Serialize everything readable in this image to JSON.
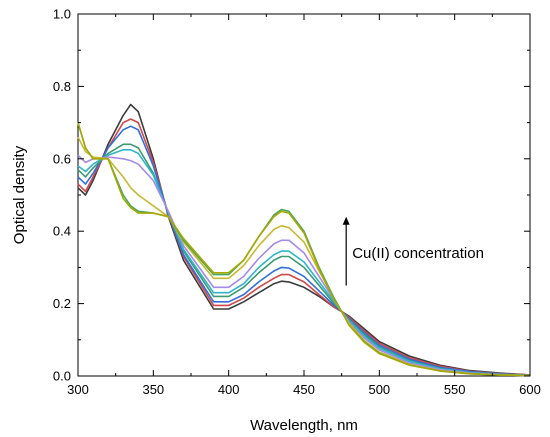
{
  "chart_data": {
    "type": "line",
    "xlabel": "Wavelength, nm",
    "ylabel": "Optical density",
    "xlim": [
      300,
      600
    ],
    "ylim": [
      0.0,
      1.0
    ],
    "x_ticks": [
      "300",
      "350",
      "400",
      "450",
      "500",
      "550",
      "600"
    ],
    "y_ticks": [
      "0.0",
      "0.2",
      "0.4",
      "0.6",
      "0.8",
      "1.0"
    ],
    "grid": false,
    "annotation": {
      "text": "Cu(II) concentration",
      "arrow": "up",
      "arrow_x": 478,
      "arrow_y_from": 0.25,
      "arrow_y_to": 0.44,
      "text_x": 482,
      "text_y": 0.34
    },
    "series": [
      {
        "color": "#3c3c3c",
        "x": [
          300,
          305,
          310,
          320,
          330,
          335,
          340,
          350,
          360,
          370,
          390,
          400,
          410,
          420,
          430,
          435,
          440,
          450,
          460,
          470,
          475,
          480,
          490,
          500,
          520,
          540,
          560,
          580,
          600
        ],
        "y": [
          0.52,
          0.5,
          0.54,
          0.64,
          0.72,
          0.75,
          0.73,
          0.6,
          0.44,
          0.32,
          0.185,
          0.185,
          0.205,
          0.23,
          0.255,
          0.262,
          0.26,
          0.245,
          0.22,
          0.19,
          0.178,
          0.165,
          0.13,
          0.095,
          0.055,
          0.03,
          0.015,
          0.008,
          0.003
        ]
      },
      {
        "color": "#d04848",
        "x": [
          300,
          305,
          310,
          320,
          330,
          335,
          340,
          350,
          360,
          370,
          390,
          400,
          410,
          420,
          430,
          435,
          440,
          450,
          460,
          470,
          475,
          480,
          490,
          500,
          520,
          540,
          560,
          580,
          600
        ],
        "y": [
          0.53,
          0.51,
          0.55,
          0.63,
          0.7,
          0.71,
          0.7,
          0.59,
          0.445,
          0.33,
          0.195,
          0.195,
          0.215,
          0.245,
          0.27,
          0.28,
          0.28,
          0.26,
          0.225,
          0.19,
          0.178,
          0.162,
          0.125,
          0.09,
          0.05,
          0.027,
          0.013,
          0.007,
          0.003
        ]
      },
      {
        "color": "#2f6fe0",
        "x": [
          300,
          305,
          310,
          320,
          330,
          335,
          340,
          350,
          360,
          370,
          390,
          400,
          410,
          420,
          430,
          435,
          440,
          450,
          460,
          470,
          475,
          480,
          490,
          500,
          520,
          540,
          560,
          580,
          600
        ],
        "y": [
          0.55,
          0.53,
          0.56,
          0.63,
          0.68,
          0.69,
          0.68,
          0.58,
          0.447,
          0.335,
          0.205,
          0.205,
          0.225,
          0.26,
          0.29,
          0.3,
          0.298,
          0.275,
          0.235,
          0.195,
          0.178,
          0.158,
          0.12,
          0.085,
          0.046,
          0.024,
          0.012,
          0.006,
          0.002
        ]
      },
      {
        "color": "#3a9a72",
        "x": [
          300,
          305,
          310,
          320,
          330,
          335,
          340,
          350,
          360,
          370,
          390,
          400,
          410,
          420,
          430,
          435,
          440,
          450,
          460,
          470,
          475,
          480,
          490,
          500,
          520,
          540,
          560,
          580,
          600
        ],
        "y": [
          0.57,
          0.55,
          0.575,
          0.615,
          0.64,
          0.64,
          0.63,
          0.56,
          0.45,
          0.345,
          0.22,
          0.22,
          0.245,
          0.285,
          0.32,
          0.33,
          0.33,
          0.3,
          0.25,
          0.2,
          0.178,
          0.155,
          0.115,
          0.08,
          0.042,
          0.021,
          0.01,
          0.005,
          0.002
        ]
      },
      {
        "color": "#2eb6c8",
        "x": [
          300,
          305,
          310,
          320,
          330,
          335,
          340,
          350,
          360,
          370,
          390,
          400,
          410,
          420,
          430,
          435,
          440,
          450,
          460,
          470,
          475,
          480,
          490,
          500,
          520,
          540,
          560,
          580,
          600
        ],
        "y": [
          0.58,
          0.565,
          0.585,
          0.61,
          0.625,
          0.625,
          0.615,
          0.555,
          0.452,
          0.35,
          0.23,
          0.23,
          0.255,
          0.3,
          0.335,
          0.345,
          0.345,
          0.315,
          0.26,
          0.205,
          0.178,
          0.152,
          0.11,
          0.077,
          0.04,
          0.02,
          0.009,
          0.004,
          0.002
        ]
      },
      {
        "color": "#a58ae8",
        "x": [
          300,
          305,
          310,
          320,
          330,
          335,
          340,
          350,
          360,
          370,
          390,
          400,
          410,
          420,
          430,
          435,
          440,
          450,
          460,
          470,
          475,
          480,
          490,
          500,
          520,
          540,
          560,
          580,
          600
        ],
        "y": [
          0.61,
          0.59,
          0.6,
          0.605,
          0.6,
          0.595,
          0.585,
          0.54,
          0.455,
          0.36,
          0.245,
          0.245,
          0.275,
          0.325,
          0.365,
          0.375,
          0.375,
          0.34,
          0.275,
          0.21,
          0.178,
          0.148,
          0.105,
          0.072,
          0.036,
          0.018,
          0.008,
          0.004,
          0.001
        ]
      },
      {
        "color": "#c8b830",
        "x": [
          300,
          305,
          310,
          320,
          330,
          335,
          340,
          350,
          360,
          370,
          390,
          400,
          410,
          420,
          430,
          435,
          440,
          450,
          460,
          470,
          475,
          480,
          490,
          500,
          520,
          540,
          560,
          580,
          600
        ],
        "y": [
          0.66,
          0.62,
          0.605,
          0.6,
          0.55,
          0.52,
          0.5,
          0.47,
          0.44,
          0.37,
          0.27,
          0.27,
          0.305,
          0.36,
          0.405,
          0.415,
          0.41,
          0.37,
          0.29,
          0.215,
          0.178,
          0.145,
          0.098,
          0.066,
          0.032,
          0.015,
          0.007,
          0.003,
          0.001
        ]
      },
      {
        "color": "#48a860",
        "x": [
          300,
          305,
          310,
          320,
          330,
          335,
          340,
          350,
          360,
          370,
          390,
          400,
          410,
          420,
          430,
          435,
          440,
          450,
          460,
          470,
          475,
          480,
          490,
          500,
          520,
          540,
          560,
          580,
          600
        ],
        "y": [
          0.7,
          0.63,
          0.6,
          0.6,
          0.5,
          0.47,
          0.455,
          0.45,
          0.44,
          0.375,
          0.28,
          0.28,
          0.32,
          0.385,
          0.445,
          0.46,
          0.455,
          0.4,
          0.3,
          0.215,
          0.178,
          0.14,
          0.095,
          0.063,
          0.03,
          0.014,
          0.006,
          0.003,
          0.001
        ]
      },
      {
        "color": "#a8a800",
        "x": [
          300,
          305,
          310,
          320,
          330,
          335,
          340,
          350,
          360,
          370,
          390,
          400,
          410,
          420,
          430,
          435,
          440,
          450,
          460,
          470,
          475,
          480,
          490,
          500,
          520,
          540,
          560,
          580,
          600
        ],
        "y": [
          0.7,
          0.63,
          0.6,
          0.6,
          0.49,
          0.465,
          0.45,
          0.45,
          0.44,
          0.38,
          0.285,
          0.285,
          0.32,
          0.385,
          0.44,
          0.455,
          0.45,
          0.395,
          0.295,
          0.21,
          0.178,
          0.14,
          0.093,
          0.062,
          0.03,
          0.014,
          0.006,
          0.003,
          0.001
        ]
      }
    ]
  }
}
